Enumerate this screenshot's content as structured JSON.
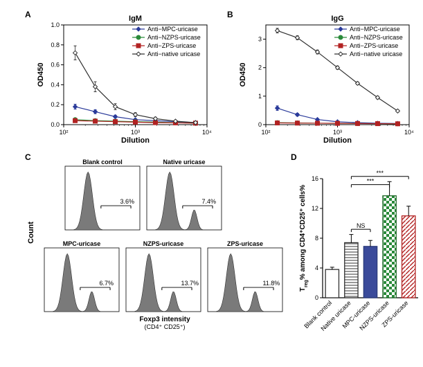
{
  "panelA": {
    "label": "A",
    "title": "IgM",
    "xlabel": "Dilution",
    "ylabel": "OD450",
    "ylim": [
      0,
      1.0
    ],
    "yticks": [
      0,
      0.2,
      0.4,
      0.6,
      0.8,
      1.0
    ],
    "xticks": [
      {
        "pos": 0,
        "label": "10²"
      },
      {
        "pos": 0.5,
        "label": "10³"
      },
      {
        "pos": 1.0,
        "label": "10⁴"
      }
    ],
    "grid_color": "#d0d0d0",
    "series": [
      {
        "name": "Anti−MPC-uricase",
        "color": "#2a3a9a",
        "marker": "diamond",
        "y": [
          0.18,
          0.13,
          0.08,
          0.05,
          0.04,
          0.03,
          0.02
        ],
        "err": [
          0.025,
          0.02,
          0.015,
          0.01,
          0.01,
          0.01,
          0.005
        ]
      },
      {
        "name": "Anti−NZPS-uricase",
        "color": "#2a8a3a",
        "marker": "circle",
        "y": [
          0.05,
          0.04,
          0.035,
          0.03,
          0.025,
          0.02,
          0.015
        ],
        "err": [
          0.01,
          0.01,
          0.01,
          0.01,
          0.005,
          0.005,
          0.005
        ]
      },
      {
        "name": "Anti−ZPS-uricase",
        "color": "#b22222",
        "marker": "square",
        "y": [
          0.04,
          0.035,
          0.03,
          0.025,
          0.02,
          0.018,
          0.015
        ],
        "err": [
          0.01,
          0.01,
          0.01,
          0.005,
          0.005,
          0.005,
          0.005
        ]
      },
      {
        "name": "Anti−native uricase",
        "color": "#303030",
        "marker": "diamond-open",
        "y": [
          0.72,
          0.38,
          0.18,
          0.1,
          0.06,
          0.035,
          0.02
        ],
        "err": [
          0.07,
          0.05,
          0.03,
          0.02,
          0.015,
          0.01,
          0.005
        ]
      }
    ]
  },
  "panelB": {
    "label": "B",
    "title": "IgG",
    "xlabel": "Dilution",
    "ylabel": "OD450",
    "ylim": [
      0,
      3.5
    ],
    "yticks": [
      0,
      1,
      2,
      3
    ],
    "xticks": [
      {
        "pos": 0,
        "label": "10²"
      },
      {
        "pos": 0.5,
        "label": "10³"
      },
      {
        "pos": 1.0,
        "label": "10⁴"
      }
    ],
    "grid_color": "#d0d0d0",
    "series": [
      {
        "name": "Anti−MPC-uricase",
        "color": "#2a3a9a",
        "marker": "diamond",
        "y": [
          0.58,
          0.35,
          0.18,
          0.1,
          0.07,
          0.05,
          0.04
        ],
        "err": [
          0.08,
          0.05,
          0.03,
          0.02,
          0.01,
          0.01,
          0.01
        ]
      },
      {
        "name": "Anti−NZPS-uricase",
        "color": "#2a8a3a",
        "marker": "circle",
        "y": [
          0.07,
          0.06,
          0.05,
          0.045,
          0.04,
          0.035,
          0.03
        ],
        "err": [
          0.015,
          0.01,
          0.01,
          0.01,
          0.005,
          0.005,
          0.005
        ]
      },
      {
        "name": "Anti−ZPS-uricase",
        "color": "#b22222",
        "marker": "square",
        "y": [
          0.06,
          0.055,
          0.05,
          0.045,
          0.04,
          0.035,
          0.03
        ],
        "err": [
          0.015,
          0.01,
          0.01,
          0.01,
          0.005,
          0.005,
          0.005
        ]
      },
      {
        "name": "Anti−native uricase",
        "color": "#303030",
        "marker": "diamond-open",
        "y": [
          3.3,
          3.05,
          2.55,
          2.0,
          1.45,
          0.95,
          0.48
        ],
        "err": [
          0.08,
          0.07,
          0.07,
          0.06,
          0.05,
          0.05,
          0.04
        ]
      }
    ]
  },
  "panelC": {
    "label": "C",
    "xlabel": "Foxp3 intensity\n(CD4⁺ CD25⁺)",
    "ylabel": "Count",
    "fill": "#7a7a7a",
    "hists": [
      {
        "title": "Blank control",
        "pct": "3.6%"
      },
      {
        "title": "Native uricase",
        "pct": "7.4%"
      },
      {
        "title": "MPC-uricase",
        "pct": "6.7%"
      },
      {
        "title": "NZPS-uricase",
        "pct": "13.7%"
      },
      {
        "title": "ZPS-uricase",
        "pct": "11.8%"
      }
    ]
  },
  "panelD": {
    "label": "D",
    "ylabel": "T_reg% among CD4⁺CD25⁺ cells%",
    "ylim": [
      0,
      16
    ],
    "yticks": [
      0,
      4,
      8,
      12,
      16
    ],
    "bars": [
      {
        "label": "Blank control",
        "value": 3.8,
        "err": 0.3,
        "fill": "#ffffff",
        "stroke": "#303030",
        "pattern": "none"
      },
      {
        "label": "Native uricase",
        "value": 7.4,
        "err": 1.1,
        "fill": "#ffffff",
        "stroke": "#303030",
        "pattern": "hlines"
      },
      {
        "label": "MPC-uricase",
        "value": 6.9,
        "err": 0.8,
        "fill": "#3a4a9a",
        "stroke": "#2a3a7a",
        "pattern": "none"
      },
      {
        "label": "NZPS-uricase",
        "value": 13.7,
        "err": 1.9,
        "fill": "#2a8a3a",
        "stroke": "#206a2a",
        "pattern": "check"
      },
      {
        "label": "ZPS-uricase",
        "value": 11.0,
        "err": 1.3,
        "fill": "#ffffff",
        "stroke": "#b22222",
        "pattern": "diag"
      }
    ],
    "sig": [
      {
        "from": 1,
        "to": 2,
        "label": "NS",
        "y": 9.2
      },
      {
        "from": 1,
        "to": 3,
        "label": "***",
        "y": 15.2
      },
      {
        "from": 1,
        "to": 4,
        "label": "***",
        "y": 16.3
      }
    ]
  }
}
